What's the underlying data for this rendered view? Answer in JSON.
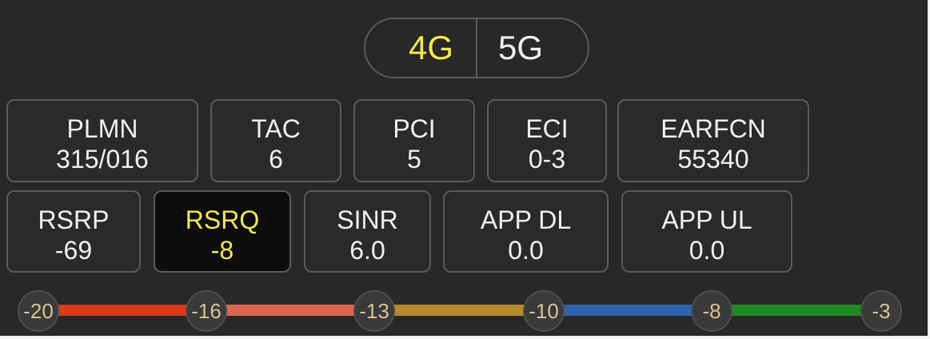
{
  "toggle": {
    "options": [
      {
        "label": "4G",
        "active": true
      },
      {
        "label": "5G",
        "active": false
      }
    ],
    "active_color": "#f7e94a"
  },
  "cell_info": [
    {
      "label": "PLMN",
      "value": "315/016"
    },
    {
      "label": "TAC",
      "value": "6"
    },
    {
      "label": "PCI",
      "value": "5"
    },
    {
      "label": "ECI",
      "value": "0-3"
    },
    {
      "label": "EARFCN",
      "value": "55340"
    }
  ],
  "signal_info": [
    {
      "label": "RSRP",
      "value": "-69",
      "selected": false
    },
    {
      "label": "RSRQ",
      "value": "-8",
      "selected": true
    },
    {
      "label": "SINR",
      "value": "6.0",
      "selected": false
    },
    {
      "label": "APP DL",
      "value": "0.0",
      "selected": false
    },
    {
      "label": "APP UL",
      "value": "0.0",
      "selected": false
    }
  ],
  "scale": {
    "thresholds": [
      "-20",
      "-16",
      "-13",
      "-10",
      "-8",
      "-3"
    ],
    "segment_colors": [
      "#d93a1c",
      "#e0654f",
      "#b68a2c",
      "#2f64ad",
      "#1f8a24"
    ]
  }
}
